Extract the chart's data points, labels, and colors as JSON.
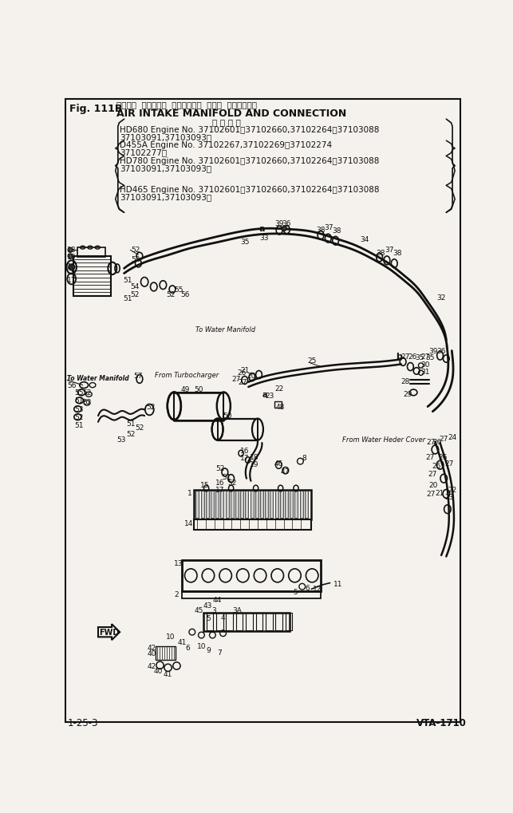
{
  "fig_label": "Fig. 111B",
  "title_jp": "エアーー  インテーク  マニホールド  および  コネクション",
  "title_en": "AIR INTAKE MANIFOLD AND CONNECTION",
  "subtitle_jp": "通 用 号 機",
  "hd680_line1": "HD680 Engine No. 37102601～37102660,37102264～37103088",
  "hd680_line2": "37103091,37103093～",
  "d455a_line1": "D455A Engine No. 37102267,37102269～37102274",
  "d455a_line2": "37102277～",
  "hd780_line1": "HD780 Engine No. 37102601～37102660,37102264～37103088",
  "hd780_line2": "37103091,37103093～",
  "hd465_line1": "HD465 Engine No. 37102601～37102660,37102264～37103088",
  "hd465_line2": "37103091,37103093～",
  "page_left": "1-25-3",
  "page_right": "VTA-1710",
  "bg_color": "#f5f2ed",
  "line_color": "#111111"
}
